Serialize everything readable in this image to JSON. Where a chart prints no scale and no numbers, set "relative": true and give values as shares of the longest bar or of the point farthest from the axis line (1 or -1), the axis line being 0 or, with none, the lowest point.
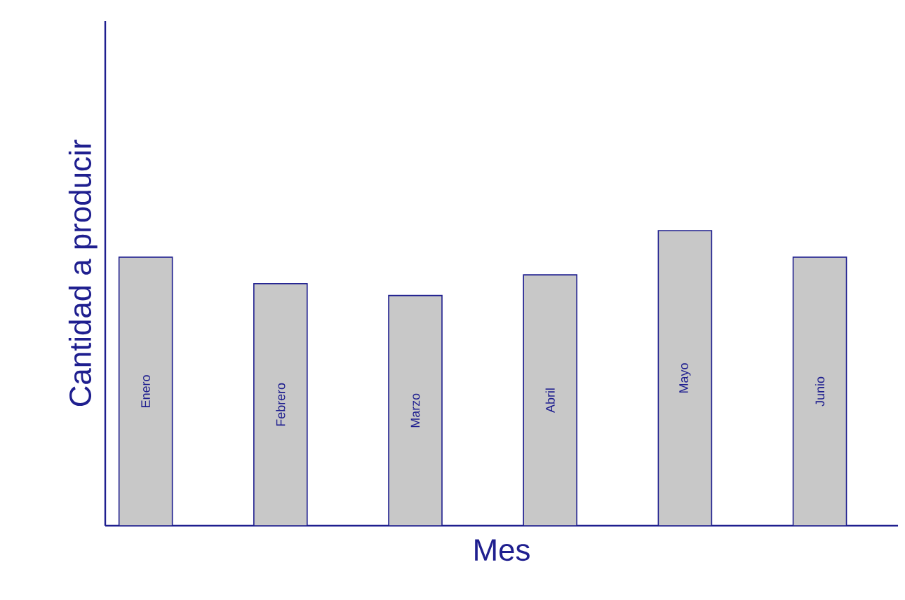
{
  "chart_data": {
    "type": "bar",
    "relative": true,
    "xlabel": "Mes",
    "ylabel": "Cantidad a producir",
    "categories": [
      "Enero",
      "Febrero",
      "Marzo",
      "Abril",
      "Mayo",
      "Junio"
    ],
    "values": [
      0.91,
      0.82,
      0.78,
      0.85,
      1,
      0.91
    ],
    "color": "#c8c8c8"
  }
}
